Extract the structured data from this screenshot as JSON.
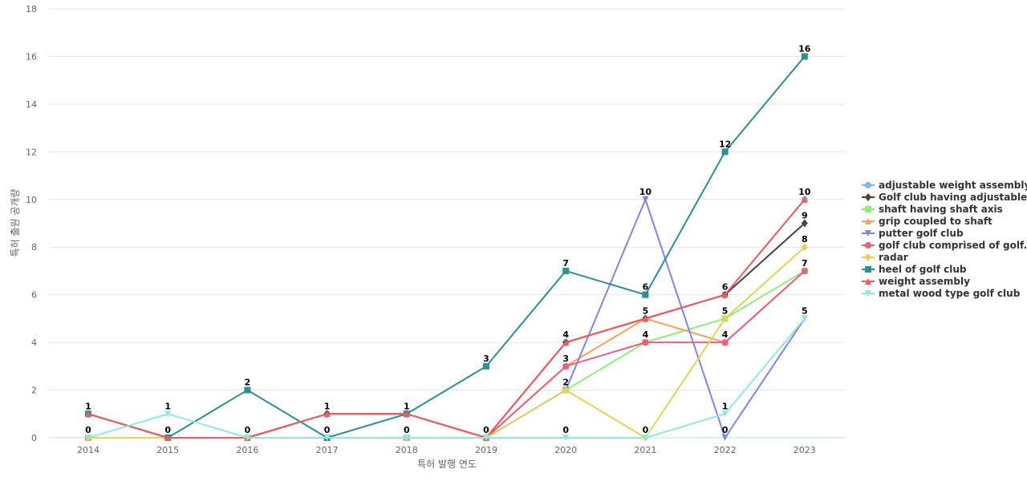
{
  "chart_data": {
    "type": "line",
    "title": "",
    "xlabel": "특허 발행 연도",
    "ylabel": "특허 출원 공개량",
    "x": [
      "2014",
      "2015",
      "2016",
      "2017",
      "2018",
      "2019",
      "2020",
      "2021",
      "2022",
      "2023"
    ],
    "ylim": [
      0,
      18
    ],
    "yticks": [
      0,
      2,
      4,
      6,
      8,
      10,
      12,
      14,
      16,
      18
    ],
    "grid": true,
    "legend_position": "right",
    "series": [
      {
        "name": "adjustable weight assembly",
        "color": "#7cb5ec",
        "marker": "circle",
        "values": [
          1,
          0,
          0,
          1,
          1,
          0,
          4,
          5,
          6,
          10
        ]
      },
      {
        "name": "Golf club having adjustable...",
        "color": "#434348",
        "marker": "diamond",
        "values": [
          1,
          0,
          0,
          1,
          1,
          0,
          4,
          5,
          6,
          9
        ]
      },
      {
        "name": "shaft having shaft axis",
        "color": "#90ed7d",
        "marker": "square",
        "values": [
          0,
          0,
          0,
          0,
          0,
          0,
          2,
          4,
          5,
          7
        ]
      },
      {
        "name": "grip coupled to shaft",
        "color": "#f7a35c",
        "marker": "triangle",
        "values": [
          0,
          0,
          0,
          0,
          0,
          0,
          3,
          5,
          4,
          7
        ]
      },
      {
        "name": "putter golf club",
        "color": "#8085e9",
        "marker": "triangle-down",
        "values": [
          0,
          0,
          0,
          0,
          0,
          0,
          2,
          10,
          0,
          5
        ]
      },
      {
        "name": "golf club comprised of golf...",
        "color": "#f15c80",
        "marker": "circle",
        "values": [
          0,
          0,
          0,
          0,
          0,
          0,
          3,
          4,
          4,
          7
        ]
      },
      {
        "name": "radar",
        "color": "#e4d354",
        "marker": "diamond",
        "values": [
          0,
          0,
          0,
          0,
          0,
          0,
          2,
          0,
          5,
          8
        ]
      },
      {
        "name": "heel of golf club",
        "color": "#2b908f",
        "marker": "square",
        "values": [
          1,
          0,
          2,
          0,
          1,
          3,
          7,
          6,
          12,
          16
        ]
      },
      {
        "name": "weight assembly",
        "color": "#f45b5b",
        "marker": "triangle",
        "values": [
          1,
          0,
          0,
          1,
          1,
          0,
          4,
          5,
          6,
          10
        ]
      },
      {
        "name": "metal wood type golf club",
        "color": "#91e8e1",
        "marker": "triangle-down",
        "values": [
          0,
          1,
          0,
          0,
          0,
          0,
          0,
          0,
          1,
          5
        ]
      }
    ],
    "data_labels": [
      {
        "x": "2014",
        "y": 1,
        "text": "1"
      },
      {
        "x": "2014",
        "y": 0,
        "text": "0"
      },
      {
        "x": "2015",
        "y": 1,
        "text": "1"
      },
      {
        "x": "2015",
        "y": 0,
        "text": "0"
      },
      {
        "x": "2016",
        "y": 2,
        "text": "2"
      },
      {
        "x": "2016",
        "y": 0,
        "text": "0"
      },
      {
        "x": "2017",
        "y": 1,
        "text": "1"
      },
      {
        "x": "2017",
        "y": 0,
        "text": "0"
      },
      {
        "x": "2018",
        "y": 1,
        "text": "1"
      },
      {
        "x": "2018",
        "y": 0,
        "text": "0"
      },
      {
        "x": "2019",
        "y": 3,
        "text": "3"
      },
      {
        "x": "2019",
        "y": 0,
        "text": "0"
      },
      {
        "x": "2020",
        "y": 7,
        "text": "7"
      },
      {
        "x": "2020",
        "y": 4,
        "text": "4"
      },
      {
        "x": "2020",
        "y": 3,
        "text": "3"
      },
      {
        "x": "2020",
        "y": 2,
        "text": "2"
      },
      {
        "x": "2020",
        "y": 0,
        "text": "0"
      },
      {
        "x": "2021",
        "y": 10,
        "text": "10"
      },
      {
        "x": "2021",
        "y": 6,
        "text": "6"
      },
      {
        "x": "2021",
        "y": 5,
        "text": "5"
      },
      {
        "x": "2021",
        "y": 4,
        "text": "4"
      },
      {
        "x": "2021",
        "y": 0,
        "text": "0"
      },
      {
        "x": "2022",
        "y": 12,
        "text": "12"
      },
      {
        "x": "2022",
        "y": 6,
        "text": "6"
      },
      {
        "x": "2022",
        "y": 5,
        "text": "5"
      },
      {
        "x": "2022",
        "y": 4,
        "text": "4"
      },
      {
        "x": "2022",
        "y": 1,
        "text": "1"
      },
      {
        "x": "2022",
        "y": 0,
        "text": "0"
      },
      {
        "x": "2023",
        "y": 16,
        "text": "16"
      },
      {
        "x": "2023",
        "y": 10,
        "text": "10"
      },
      {
        "x": "2023",
        "y": 9,
        "text": "9"
      },
      {
        "x": "2023",
        "y": 8,
        "text": "8"
      },
      {
        "x": "2023",
        "y": 7,
        "text": "7"
      },
      {
        "x": "2023",
        "y": 5,
        "text": "5"
      }
    ]
  }
}
